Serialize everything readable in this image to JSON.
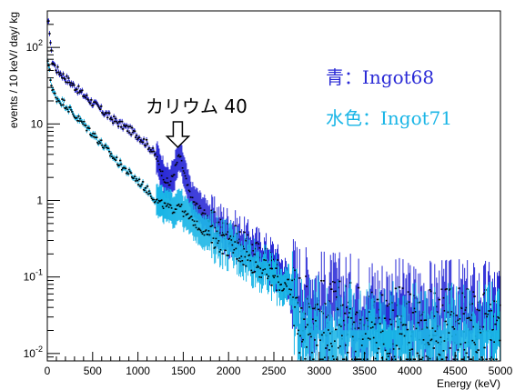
{
  "chart_data": {
    "type": "scatter",
    "xlabel": "Energy (keV)",
    "ylabel": "events / 10 keV/ day/ kg",
    "xlim": [
      0,
      5000
    ],
    "ylim": [
      0.008,
      300
    ],
    "y_scale": "log",
    "x_ticks": [
      0,
      500,
      1000,
      1500,
      2000,
      2500,
      3000,
      3500,
      4000,
      4500,
      5000
    ],
    "x_tick_labels": [
      "0",
      "500",
      "1000",
      "1500",
      "2000",
      "2500",
      "3000",
      "3500",
      "4000",
      "4500",
      "5000"
    ],
    "y_ticks": [
      0.01,
      0.1,
      1,
      10,
      100
    ],
    "y_tick_bases": [
      "10",
      "10",
      "1",
      "10",
      "10"
    ],
    "y_tick_exps": [
      "-2",
      "-1",
      "",
      "",
      "2"
    ],
    "grid": false,
    "legend_placement": "top-right",
    "series": [
      {
        "name": "青：Ingot68",
        "color": "#2a2ad6",
        "x": [
          20,
          50,
          100,
          200,
          300,
          400,
          500,
          600,
          700,
          800,
          900,
          1000,
          1100,
          1200,
          1250,
          1300,
          1350,
          1400,
          1460,
          1500,
          1550,
          1600,
          1700,
          1800,
          1900,
          2000,
          2100,
          2200,
          2300,
          2400,
          2500,
          2600,
          2700,
          2800,
          2900,
          3000,
          3500,
          4000,
          4500,
          5000
        ],
        "y": [
          200,
          70,
          52,
          40,
          31,
          24,
          19,
          15,
          12,
          10,
          8.5,
          7,
          5.5,
          3.8,
          2.6,
          1.9,
          1.6,
          2.3,
          4.0,
          2.6,
          1.5,
          1.0,
          0.75,
          0.55,
          0.45,
          0.38,
          0.32,
          0.26,
          0.22,
          0.18,
          0.15,
          0.1,
          0.07,
          0.05,
          0.045,
          0.04,
          0.035,
          0.03,
          0.03,
          0.03
        ]
      },
      {
        "name": "水色：Ingot71",
        "color": "#19b5e6",
        "x": [
          20,
          50,
          100,
          200,
          300,
          400,
          500,
          600,
          700,
          800,
          900,
          1000,
          1100,
          1200,
          1300,
          1400,
          1460,
          1500,
          1600,
          1700,
          1800,
          1900,
          2000,
          2100,
          2200,
          2300,
          2400,
          2500,
          2600,
          2700,
          2800,
          2900,
          3000,
          3500,
          4000,
          4500,
          5000
        ],
        "y": [
          60,
          28,
          22,
          18,
          13,
          10,
          7.5,
          5.5,
          4.0,
          3.0,
          2.3,
          1.8,
          1.4,
          1.0,
          0.85,
          0.75,
          0.95,
          0.7,
          0.55,
          0.42,
          0.35,
          0.3,
          0.26,
          0.22,
          0.18,
          0.15,
          0.12,
          0.1,
          0.08,
          0.06,
          0.02,
          0.018,
          0.018,
          0.015,
          0.015,
          0.015,
          0.015
        ]
      }
    ],
    "annotations": [
      {
        "text": "カリウム 40",
        "x": 1460,
        "y": 4.0
      }
    ]
  }
}
